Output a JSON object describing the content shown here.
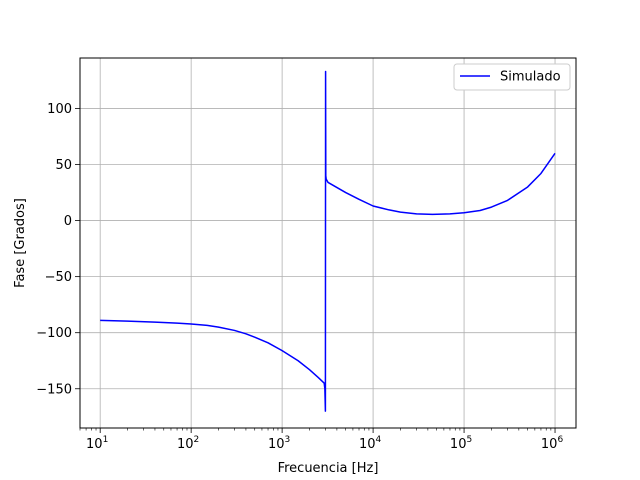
{
  "chart_data": {
    "type": "line",
    "title": "",
    "xlabel": "Frecuencia [Hz]",
    "ylabel": "Fase [Grados]",
    "xscale": "log",
    "xlim": [
      6.0,
      1700000
    ],
    "ylim": [
      -185,
      145
    ],
    "grid": true,
    "legend_position": "top-right",
    "x_ticks": [
      {
        "value": 10,
        "base": "10",
        "exp": "1"
      },
      {
        "value": 100,
        "base": "10",
        "exp": "2"
      },
      {
        "value": 1000,
        "base": "10",
        "exp": "3"
      },
      {
        "value": 10000,
        "base": "10",
        "exp": "4"
      },
      {
        "value": 100000,
        "base": "10",
        "exp": "5"
      },
      {
        "value": 1000000,
        "base": "10",
        "exp": "6"
      }
    ],
    "y_ticks": [
      {
        "value": 100,
        "label": "100"
      },
      {
        "value": 50,
        "label": "50"
      },
      {
        "value": 0,
        "label": "0"
      },
      {
        "value": -50,
        "label": "−50"
      },
      {
        "value": -100,
        "label": "−100"
      },
      {
        "value": -150,
        "label": "−150"
      }
    ],
    "series": [
      {
        "name": "Simulado",
        "color": "#0000ff",
        "points": [
          [
            10,
            -89
          ],
          [
            20,
            -89.7
          ],
          [
            40,
            -90.6
          ],
          [
            70,
            -91.5
          ],
          [
            100,
            -92.2
          ],
          [
            150,
            -93.5
          ],
          [
            200,
            -95
          ],
          [
            300,
            -98
          ],
          [
            400,
            -101
          ],
          [
            500,
            -104
          ],
          [
            700,
            -109
          ],
          [
            1000,
            -116
          ],
          [
            1500,
            -125
          ],
          [
            2000,
            -133
          ],
          [
            2500,
            -140
          ],
          [
            2900,
            -145
          ],
          [
            2950,
            -150
          ],
          [
            2990,
            -170
          ],
          [
            3005,
            133
          ],
          [
            3020,
            40
          ],
          [
            3050,
            37
          ],
          [
            3200,
            34
          ],
          [
            5000,
            25
          ],
          [
            7000,
            19
          ],
          [
            10000,
            13
          ],
          [
            15000,
            9.5
          ],
          [
            20000,
            7.5
          ],
          [
            30000,
            6
          ],
          [
            45000,
            5.5
          ],
          [
            70000,
            6
          ],
          [
            100000,
            7
          ],
          [
            150000,
            9
          ],
          [
            200000,
            12
          ],
          [
            300000,
            18
          ],
          [
            500000,
            30
          ],
          [
            700000,
            42
          ],
          [
            1000000,
            60
          ]
        ]
      }
    ]
  }
}
